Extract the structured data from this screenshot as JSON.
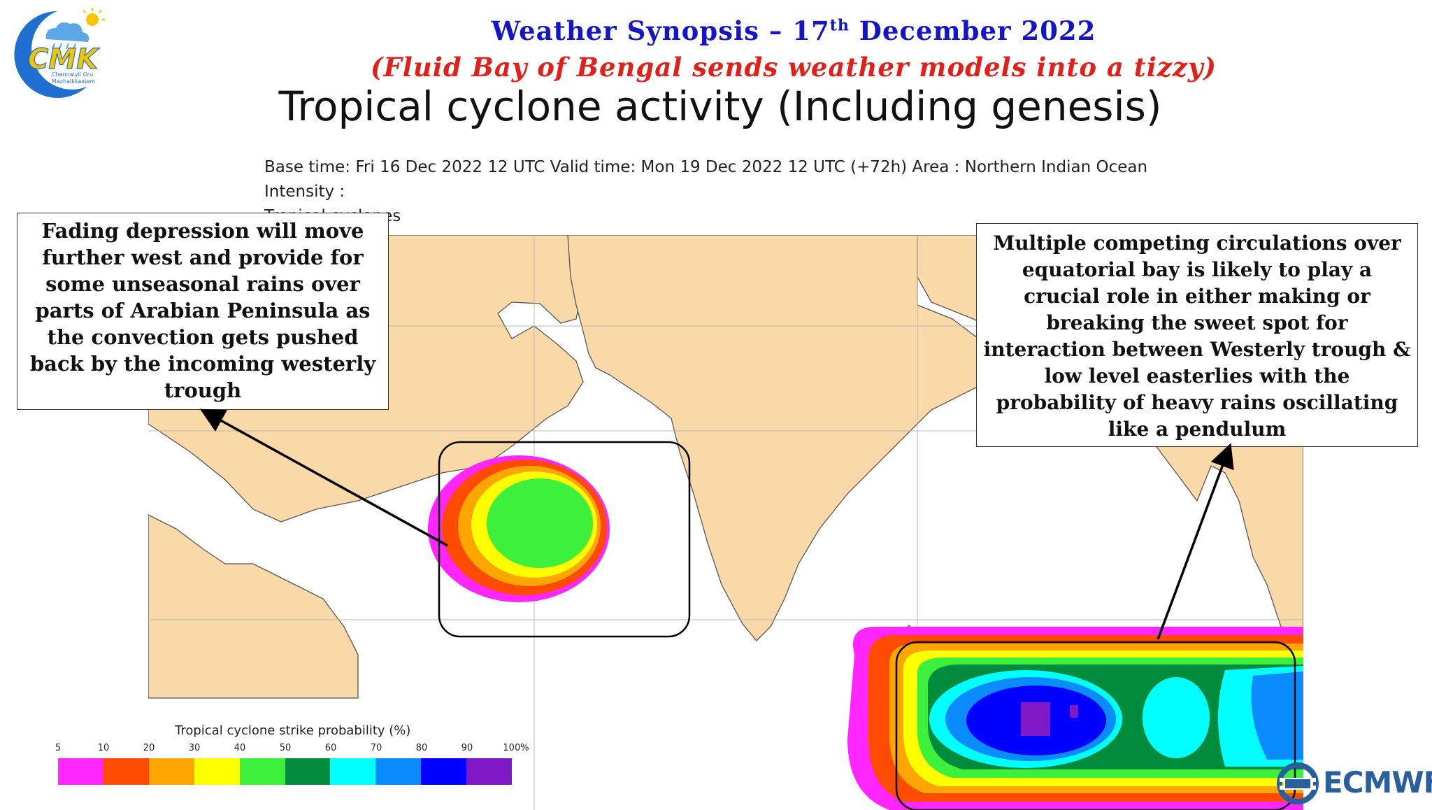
{
  "header": {
    "title_main": "Weather Synopsis – 17",
    "title_sup": "th",
    "title_rest": " December 2022",
    "subtitle": "(Fluid Bay of Bengal sends weather models into a tizzy)",
    "product_title": "Tropical cyclone activity (Including genesis)",
    "base_time_line1": "Base time: Fri 16 Dec 2022 12 UTC Valid time: Mon 19 Dec 2022 12 UTC (+72h) Area : Northern Indian Ocean Intensity :",
    "base_time_line2": "Tropical cyclones"
  },
  "logo": {
    "letters": "CMK",
    "line1": "Chennaiyil Oru",
    "line2": "Mazhaikkaalam",
    "colors": {
      "moon": "#1f6fd1",
      "text_yellow": "#f2c500",
      "cloud": "#5aa9e6",
      "sun": "#f7c600"
    }
  },
  "callouts": {
    "left": "Fading depression will move further west and provide for some unseasonal rains over parts of Arabian Peninsula as the convection gets pushed back by the incoming westerly trough",
    "right": "Multiple competing circulations over equatorial bay is likely to play a crucial role in either making or breaking the sweet spot for interaction between Westerly trough & low level easterlies with the probability of heavy rains oscillating like a pendulum"
  },
  "legend": {
    "title": "Tropical cyclone strike probability (%)",
    "ticks": [
      "5",
      "10",
      "20",
      "30",
      "40",
      "50",
      "60",
      "70",
      "80",
      "90",
      "100%"
    ],
    "colors": [
      "#ff26ff",
      "#ff4b00",
      "#ffa500",
      "#ffff00",
      "#3cf03c",
      "#008c3c",
      "#00ffff",
      "#0a8cff",
      "#0000ff",
      "#7f19c8"
    ]
  },
  "brand": {
    "name": "ECMWF",
    "color": "#2a5f9e"
  },
  "map": {
    "land_color": "#fad9a8",
    "ocean_color": "#ffffff",
    "border_color": "#555555"
  }
}
